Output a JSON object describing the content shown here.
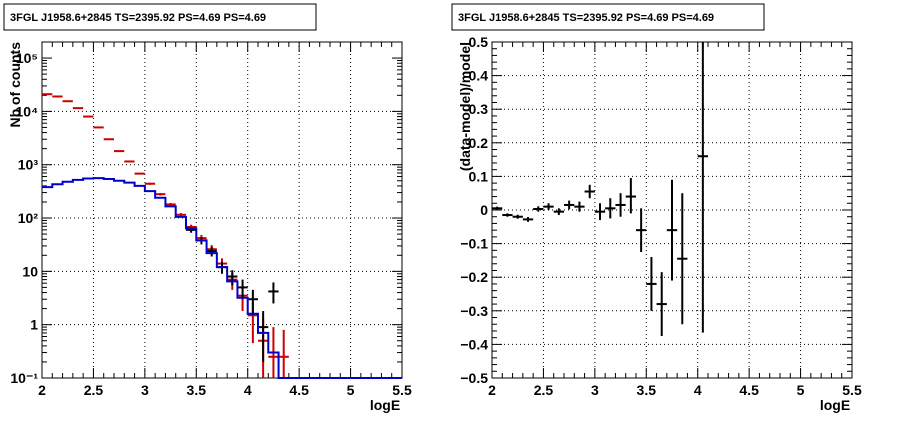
{
  "chart_data": [
    {
      "type": "line",
      "title": "3FGL J1958.6+2845 TS=2395.92 PS=4.69 PS=4.69",
      "xlabel": "logE",
      "ylabel": "Nb of counts",
      "xlim": [
        2,
        5.5
      ],
      "ylim": [
        0.1,
        200000
      ],
      "yscale": "log",
      "grid": true,
      "xticks": [
        2,
        2.5,
        3,
        3.5,
        4,
        4.5,
        5,
        5.5
      ],
      "xtick_labels": [
        "2",
        "2.5",
        "3",
        "3.5",
        "4",
        "4.5",
        "5",
        "5.5"
      ],
      "yticks": [
        0.1,
        1,
        10,
        100,
        1000,
        10000,
        100000
      ],
      "ytick_labels": [
        "10⁻¹",
        "1",
        "10",
        "10²",
        "10³",
        "10⁴",
        "10⁵"
      ],
      "bin_width": 0.1,
      "series": [
        {
          "color": "#cc0000",
          "style": "errorbar",
          "points": [
            {
              "x": 2.05,
              "y": 21000,
              "lo": 20700,
              "hi": 21300
            },
            {
              "x": 2.15,
              "y": 19000,
              "lo": 18700,
              "hi": 19300
            },
            {
              "x": 2.25,
              "y": 15500,
              "lo": 15200,
              "hi": 15800
            },
            {
              "x": 2.35,
              "y": 11500,
              "lo": 11300,
              "hi": 11700
            },
            {
              "x": 2.45,
              "y": 8000,
              "lo": 7850,
              "hi": 8150
            },
            {
              "x": 2.55,
              "y": 5000,
              "lo": 4900,
              "hi": 5100
            },
            {
              "x": 2.65,
              "y": 3000,
              "lo": 2920,
              "hi": 3080
            },
            {
              "x": 2.75,
              "y": 1800,
              "lo": 1750,
              "hi": 1850
            },
            {
              "x": 2.85,
              "y": 1150,
              "lo": 1110,
              "hi": 1190
            },
            {
              "x": 2.95,
              "y": 680,
              "lo": 655,
              "hi": 705
            },
            {
              "x": 3.05,
              "y": 440,
              "lo": 420,
              "hi": 460
            },
            {
              "x": 3.15,
              "y": 280,
              "lo": 265,
              "hi": 295
            },
            {
              "x": 3.25,
              "y": 180,
              "lo": 168,
              "hi": 192
            },
            {
              "x": 3.35,
              "y": 115,
              "lo": 106,
              "hi": 124
            },
            {
              "x": 3.45,
              "y": 68,
              "lo": 61,
              "hi": 75
            },
            {
              "x": 3.55,
              "y": 42,
              "lo": 36,
              "hi": 48
            },
            {
              "x": 3.65,
              "y": 26,
              "lo": 21,
              "hi": 31
            },
            {
              "x": 3.75,
              "y": 14,
              "lo": 10.5,
              "hi": 17.5
            },
            {
              "x": 3.85,
              "y": 7,
              "lo": 4.5,
              "hi": 9.5
            },
            {
              "x": 3.95,
              "y": 3.5,
              "lo": 1.8,
              "hi": 5.2
            },
            {
              "x": 4.05,
              "y": 1.5,
              "lo": 0.45,
              "hi": 2.6
            },
            {
              "x": 4.15,
              "y": 0.5,
              "lo": 0.1,
              "hi": 1.3
            },
            {
              "x": 4.25,
              "y": 0.25,
              "lo": 0.1,
              "hi": 0.9
            },
            {
              "x": 4.35,
              "y": 0.25,
              "lo": 0.1,
              "hi": 0.8
            }
          ]
        },
        {
          "color": "#000000",
          "style": "errorbar",
          "points": [
            {
              "x": 3.45,
              "y": 60,
              "lo": 53,
              "hi": 67
            },
            {
              "x": 3.55,
              "y": 38,
              "lo": 32,
              "hi": 44
            },
            {
              "x": 3.65,
              "y": 24,
              "lo": 19,
              "hi": 29
            },
            {
              "x": 3.75,
              "y": 12,
              "lo": 9,
              "hi": 15
            },
            {
              "x": 3.85,
              "y": 8,
              "lo": 5.5,
              "hi": 10.5
            },
            {
              "x": 3.95,
              "y": 5,
              "lo": 3,
              "hi": 7
            },
            {
              "x": 4.05,
              "y": 3,
              "lo": 1.5,
              "hi": 4.5
            },
            {
              "x": 4.15,
              "y": 0.9,
              "lo": 0.2,
              "hi": 1.8
            },
            {
              "x": 4.25,
              "y": 4.2,
              "lo": 2.5,
              "hi": 6.2
            }
          ]
        },
        {
          "color": "#0000cc",
          "style": "step",
          "edges": [
            2.0,
            2.1,
            2.2,
            2.3,
            2.4,
            2.5,
            2.6,
            2.7,
            2.8,
            2.9,
            3.0,
            3.1,
            3.2,
            3.3,
            3.4,
            3.5,
            3.6,
            3.7,
            3.8,
            3.9,
            4.0,
            4.1,
            4.2,
            4.3,
            4.4,
            4.5,
            4.6,
            4.7,
            4.8,
            4.9,
            5.0,
            5.1,
            5.2,
            5.3,
            5.4,
            5.5
          ],
          "values": [
            380,
            430,
            480,
            520,
            550,
            560,
            540,
            500,
            460,
            400,
            320,
            240,
            165,
            105,
            64,
            38,
            22,
            12,
            6.5,
            3.2,
            1.6,
            0.7,
            0.3,
            0.1,
            0.1,
            0.1,
            0.1,
            0.1,
            0.1,
            0.1,
            0.1,
            0.1,
            0.1,
            0.1,
            0.1
          ]
        }
      ]
    },
    {
      "type": "scatter",
      "title": "3FGL J1958.6+2845 TS=2395.92 PS=4.69 PS=4.69",
      "xlabel": "logE",
      "ylabel": "(data-model)/model",
      "xlim": [
        2,
        5.5
      ],
      "ylim": [
        -0.5,
        0.5
      ],
      "grid": true,
      "xticks": [
        2,
        2.5,
        3,
        3.5,
        4,
        4.5,
        5,
        5.5
      ],
      "xtick_labels": [
        "2",
        "2.5",
        "3",
        "3.5",
        "4",
        "4.5",
        "5",
        "5.5"
      ],
      "yticks": [
        -0.5,
        -0.4,
        -0.3,
        -0.2,
        -0.1,
        0,
        0.1,
        0.2,
        0.3,
        0.4,
        0.5
      ],
      "ytick_labels": [
        "−0.5",
        "−0.4",
        "−0.3",
        "−0.2",
        "−0.1",
        "0",
        "0.1",
        "0.2",
        "0.3",
        "0.4",
        "0.5"
      ],
      "bin_width": 0.1,
      "series": [
        {
          "color": "#000000",
          "style": "errorbar",
          "points": [
            {
              "x": 2.05,
              "y": 0.005,
              "lo": 0.0,
              "hi": 0.01
            },
            {
              "x": 2.15,
              "y": -0.015,
              "lo": -0.02,
              "hi": -0.01
            },
            {
              "x": 2.25,
              "y": -0.02,
              "lo": -0.026,
              "hi": -0.014
            },
            {
              "x": 2.35,
              "y": -0.028,
              "lo": -0.035,
              "hi": -0.021
            },
            {
              "x": 2.45,
              "y": 0.003,
              "lo": -0.005,
              "hi": 0.011
            },
            {
              "x": 2.55,
              "y": 0.01,
              "lo": 0.0,
              "hi": 0.02
            },
            {
              "x": 2.65,
              "y": -0.005,
              "lo": -0.015,
              "hi": 0.005
            },
            {
              "x": 2.75,
              "y": 0.015,
              "lo": 0.002,
              "hi": 0.028
            },
            {
              "x": 2.85,
              "y": 0.01,
              "lo": -0.005,
              "hi": 0.025
            },
            {
              "x": 2.95,
              "y": 0.055,
              "lo": 0.035,
              "hi": 0.075
            },
            {
              "x": 3.05,
              "y": -0.005,
              "lo": -0.03,
              "hi": 0.02
            },
            {
              "x": 3.15,
              "y": 0.005,
              "lo": -0.025,
              "hi": 0.035
            },
            {
              "x": 3.25,
              "y": 0.015,
              "lo": -0.02,
              "hi": 0.05
            },
            {
              "x": 3.35,
              "y": 0.04,
              "lo": -0.01,
              "hi": 0.095
            },
            {
              "x": 3.45,
              "y": -0.06,
              "lo": -0.125,
              "hi": 0.005
            },
            {
              "x": 3.55,
              "y": -0.22,
              "lo": -0.3,
              "hi": -0.14
            },
            {
              "x": 3.65,
              "y": -0.28,
              "lo": -0.375,
              "hi": -0.185
            },
            {
              "x": 3.75,
              "y": -0.06,
              "lo": -0.21,
              "hi": 0.09
            },
            {
              "x": 3.85,
              "y": -0.145,
              "lo": -0.34,
              "hi": 0.05
            },
            {
              "x": 4.05,
              "y": 0.16,
              "lo": -0.365,
              "hi": 0.5
            }
          ]
        }
      ]
    }
  ]
}
